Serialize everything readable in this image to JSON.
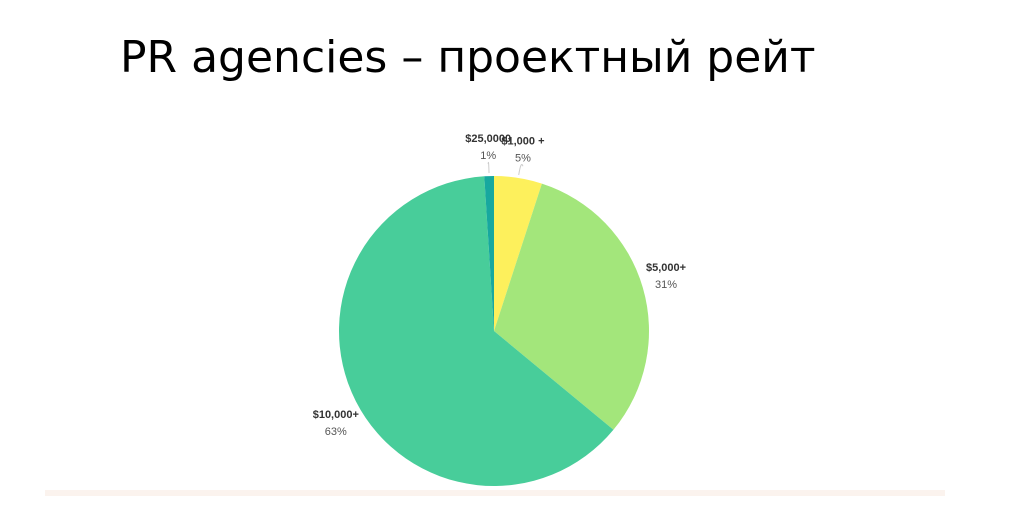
{
  "chart_data": {
    "type": "pie",
    "title": "PR agencies – проектный рейт",
    "categories": [
      "$1,000 +",
      "$5,000+",
      "$10,000+",
      "$25,0000"
    ],
    "values": [
      5,
      31,
      63,
      1
    ],
    "value_labels": [
      "5%",
      "31%",
      "63%",
      "1%"
    ],
    "colors": [
      "#fdf05c",
      "#a3e67b",
      "#48cd9a",
      "#17a89f"
    ]
  }
}
